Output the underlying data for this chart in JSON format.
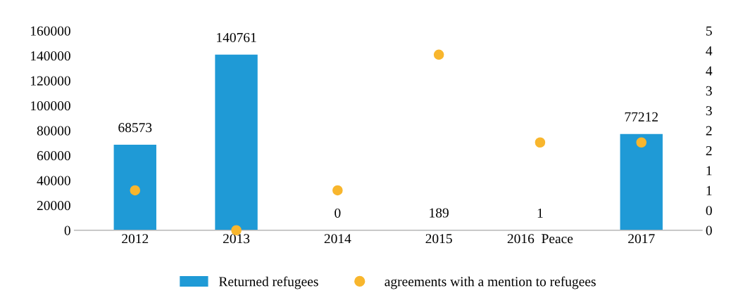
{
  "chart_data": {
    "type": "bar",
    "categories": [
      "2012",
      "2013",
      "2014",
      "2015",
      "2016  Peace",
      "2017"
    ],
    "series": [
      {
        "name": "Returned refugees",
        "color": "#1f9ad6",
        "values": [
          68573,
          140761,
          0,
          189,
          1,
          77212
        ],
        "value_labels": [
          "68573",
          "140761",
          "0",
          "189",
          "1",
          "77212"
        ]
      },
      {
        "name": "agreements with a mention to refugees",
        "type": "scatter",
        "axis": "y2",
        "color": "#f8b62d",
        "values": [
          1,
          0,
          1,
          4.4,
          2.2,
          2.2
        ]
      }
    ],
    "ylim": [
      0,
      160000
    ],
    "yticks": [
      0,
      20000,
      40000,
      60000,
      80000,
      100000,
      120000,
      140000,
      160000
    ],
    "y2lim": [
      0,
      5
    ],
    "y2ticks": [
      0,
      {
        "value": 0.5,
        "label": "0"
      },
      1,
      {
        "value": 1.5,
        "label": "1"
      },
      2,
      {
        "value": 2.5,
        "label": "2"
      },
      3,
      {
        "value": 3.5,
        "label": "3"
      },
      4,
      {
        "value": 4.5,
        "label": "4"
      },
      5
    ],
    "grid": false,
    "legend": "bottom",
    "marker": "circle"
  }
}
